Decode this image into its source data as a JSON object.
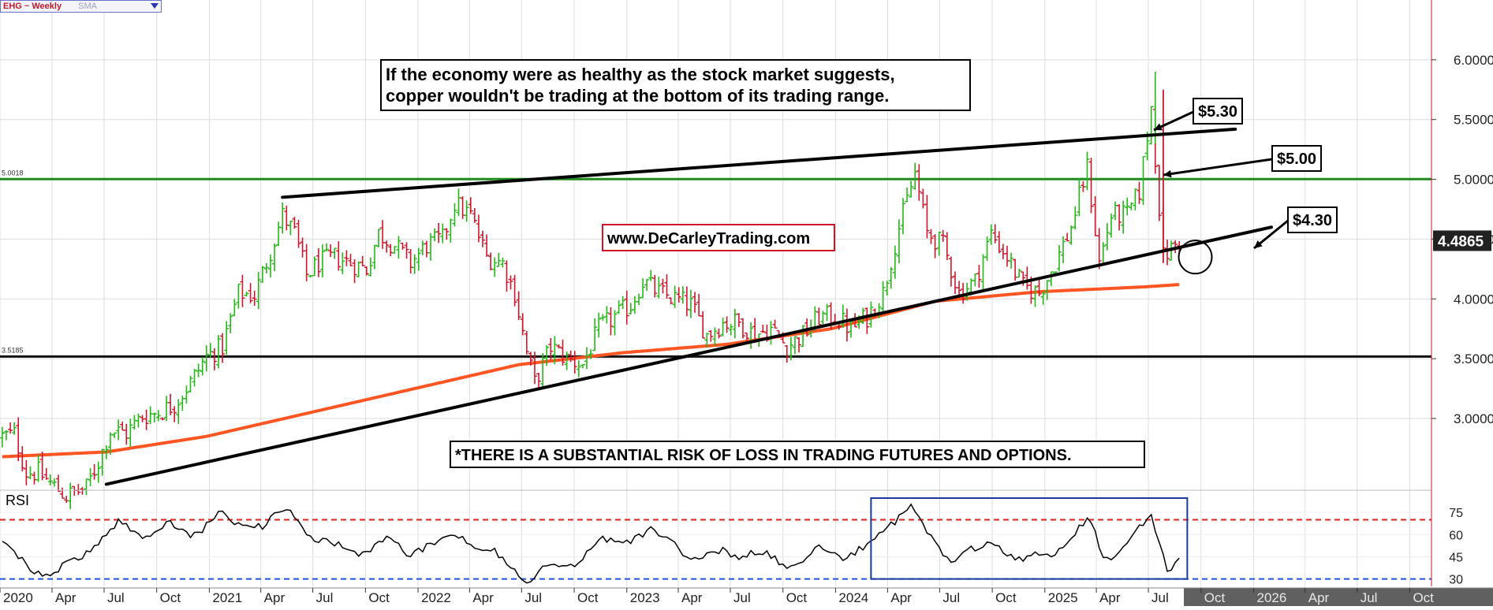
{
  "header": {
    "symbol": "EHG ~ Weekly",
    "indicator": "SMA"
  },
  "colors": {
    "up_bar": "#22b814",
    "down_bar": "#d0142a",
    "sma": "#ff5522",
    "resistance_line": "#1e8c1e",
    "rsi_overbought": "#e02020",
    "rsi_oversold": "#2255dd",
    "highlight_box": "#1a3a9a",
    "grid": "#dddddd",
    "future_band": "#606060",
    "price_tag": "#222222"
  },
  "annotations": {
    "headline": "If the economy were as healthy as the stock market suggests, copper wouldn't be trading at the bottom of its trading range.",
    "headline_line1": "If the economy were as healthy as the stock market suggests,",
    "headline_line2": "copper wouldn't be trading at the bottom of its trading range.",
    "website": "www.DeCarleyTrading.com",
    "disclaimer": "*THERE IS A SUBSTANTIAL RISK OF LOSS IN TRADING FUTURES AND OPTIONS.",
    "callouts": [
      "$5.30",
      "$5.00",
      "$4.30"
    ],
    "rsi_label": "RSI",
    "level_labels": [
      "5.0018",
      "3.5185"
    ],
    "last_price": "4.4865"
  },
  "chart_data": {
    "type": "line",
    "title": "EHG ~ Weekly",
    "frequency": "weekly",
    "last_price": 4.4865,
    "x_tick_labels": [
      "2020",
      "Apr",
      "Jul",
      "Oct",
      "2021",
      "Apr",
      "Jul",
      "Oct",
      "2022",
      "Apr",
      "Jul",
      "Oct",
      "2023",
      "Apr",
      "Jul",
      "Oct",
      "2024",
      "Apr",
      "Jul",
      "Oct",
      "2025",
      "Apr",
      "Jul",
      "Oct",
      "2026",
      "Apr",
      "Jul",
      "Oct"
    ],
    "x_tick_dates": [
      "2020-01-01",
      "2020-04-01",
      "2020-07-01",
      "2020-10-01",
      "2021-01-01",
      "2021-04-01",
      "2021-07-01",
      "2021-10-01",
      "2022-01-01",
      "2022-04-01",
      "2022-07-01",
      "2022-10-01",
      "2023-01-01",
      "2023-04-01",
      "2023-07-01",
      "2023-10-01",
      "2024-01-01",
      "2024-04-01",
      "2024-07-01",
      "2024-10-01",
      "2025-01-01",
      "2025-04-01",
      "2025-07-01",
      "2025-10-01",
      "2026-01-01",
      "2026-04-01",
      "2026-07-01",
      "2026-10-01"
    ],
    "x_range": [
      "2020-01-01",
      "2026-11-08"
    ],
    "future_start": "2025-09-01",
    "y_tick_labels": [
      "3.0000",
      "3.5000",
      "4.0000",
      "4.5000",
      "5.0000",
      "5.5000",
      "6.0000"
    ],
    "y_ticks": [
      3.0,
      3.5,
      4.0,
      4.5,
      5.0,
      5.5,
      6.0
    ],
    "ylim": [
      2.4,
      6.5
    ],
    "grid": true,
    "price": {
      "name": "Price",
      "style": "OHLC bars",
      "points": [
        [
          "2020-01-05",
          2.85
        ],
        [
          "2020-01-26",
          2.87
        ],
        [
          "2020-02-16",
          2.55
        ],
        [
          "2020-03-08",
          2.55
        ],
        [
          "2020-03-29",
          2.46
        ],
        [
          "2020-04-26",
          2.35
        ],
        [
          "2020-05-31",
          2.42
        ],
        [
          "2020-06-21",
          2.64
        ],
        [
          "2020-07-12",
          2.9
        ],
        [
          "2020-08-09",
          2.88
        ],
        [
          "2020-09-06",
          3.02
        ],
        [
          "2020-10-04",
          3.05
        ],
        [
          "2020-11-01",
          3.12
        ],
        [
          "2020-11-29",
          3.3
        ],
        [
          "2020-12-27",
          3.52
        ],
        [
          "2021-01-24",
          3.6
        ],
        [
          "2021-02-21",
          4.05
        ],
        [
          "2021-03-21",
          4.03
        ],
        [
          "2021-04-18",
          4.4
        ],
        [
          "2021-05-09",
          4.7
        ],
        [
          "2021-05-30",
          4.55
        ],
        [
          "2021-06-20",
          4.2
        ],
        [
          "2021-07-11",
          4.3
        ],
        [
          "2021-08-08",
          4.35
        ],
        [
          "2021-09-05",
          4.3
        ],
        [
          "2021-10-03",
          4.25
        ],
        [
          "2021-10-24",
          4.55
        ],
        [
          "2021-11-21",
          4.45
        ],
        [
          "2021-12-19",
          4.3
        ],
        [
          "2022-01-16",
          4.45
        ],
        [
          "2022-02-13",
          4.5
        ],
        [
          "2022-03-06",
          4.8
        ],
        [
          "2022-04-03",
          4.7
        ],
        [
          "2022-05-01",
          4.35
        ],
        [
          "2022-05-29",
          4.3
        ],
        [
          "2022-06-19",
          4.05
        ],
        [
          "2022-07-10",
          3.55
        ],
        [
          "2022-07-24",
          3.3
        ],
        [
          "2022-08-21",
          3.6
        ],
        [
          "2022-09-18",
          3.5
        ],
        [
          "2022-10-16",
          3.45
        ],
        [
          "2022-11-13",
          3.75
        ],
        [
          "2022-12-11",
          3.85
        ],
        [
          "2023-01-08",
          3.95
        ],
        [
          "2023-01-29",
          4.15
        ],
        [
          "2023-02-26",
          4.05
        ],
        [
          "2023-03-26",
          4.0
        ],
        [
          "2023-04-23",
          3.95
        ],
        [
          "2023-05-21",
          3.7
        ],
        [
          "2023-06-18",
          3.8
        ],
        [
          "2023-07-16",
          3.8
        ],
        [
          "2023-08-13",
          3.7
        ],
        [
          "2023-09-10",
          3.75
        ],
        [
          "2023-10-08",
          3.6
        ],
        [
          "2023-11-05",
          3.7
        ],
        [
          "2023-12-03",
          3.85
        ],
        [
          "2023-12-31",
          3.85
        ],
        [
          "2024-01-28",
          3.75
        ],
        [
          "2024-02-25",
          3.85
        ],
        [
          "2024-03-24",
          4.05
        ],
        [
          "2024-04-21",
          4.6
        ],
        [
          "2024-05-19",
          5.05
        ],
        [
          "2024-06-09",
          4.55
        ],
        [
          "2024-07-07",
          4.45
        ],
        [
          "2024-08-04",
          4.05
        ],
        [
          "2024-09-01",
          4.15
        ],
        [
          "2024-09-29",
          4.55
        ],
        [
          "2024-10-27",
          4.35
        ],
        [
          "2024-11-24",
          4.1
        ],
        [
          "2024-12-22",
          4.05
        ],
        [
          "2025-01-19",
          4.3
        ],
        [
          "2025-02-16",
          4.6
        ],
        [
          "2025-03-16",
          5.1
        ],
        [
          "2025-04-06",
          4.3
        ],
        [
          "2025-04-27",
          4.7
        ],
        [
          "2025-05-25",
          4.7
        ],
        [
          "2025-06-15",
          4.9
        ],
        [
          "2025-07-06",
          5.6
        ],
        [
          "2025-07-27",
          4.35
        ],
        [
          "2025-08-17",
          4.45
        ],
        [
          "2025-08-24",
          4.48
        ]
      ]
    },
    "sma": {
      "name": "SMA",
      "points": [
        [
          "2020-01-05",
          2.68
        ],
        [
          "2020-07-05",
          2.72
        ],
        [
          "2020-12-27",
          2.85
        ],
        [
          "2021-06-27",
          3.05
        ],
        [
          "2021-12-26",
          3.25
        ],
        [
          "2022-06-26",
          3.45
        ],
        [
          "2022-12-25",
          3.55
        ],
        [
          "2023-06-25",
          3.62
        ],
        [
          "2023-12-24",
          3.75
        ],
        [
          "2024-06-23",
          3.98
        ],
        [
          "2024-12-22",
          4.06
        ],
        [
          "2025-06-22",
          4.1
        ],
        [
          "2025-08-24",
          4.12
        ]
      ]
    },
    "trendlines": [
      {
        "name": "$5.30",
        "from": [
          "2021-05-09",
          4.85
        ],
        "to": [
          "2025-11-30",
          5.42
        ]
      },
      {
        "name": "$4.30",
        "from": [
          "2020-07-05",
          2.45
        ],
        "to": [
          "2026-02-01",
          4.6
        ]
      }
    ],
    "levels": [
      {
        "name": "5.0018",
        "value": 5.0018
      },
      {
        "name": "3.5185",
        "value": 3.5185
      }
    ],
    "callouts": [
      {
        "label": "$5.30",
        "date": "2025-07-27",
        "value": 5.3
      },
      {
        "label": "$5.00",
        "date": "2025-08-03",
        "value": 5.0
      },
      {
        "label": "$4.30",
        "date": "2025-09-28",
        "value": 4.3
      }
    ],
    "circle_target": {
      "date": "2025-09-21",
      "value": 4.35
    },
    "rsi": {
      "name": "RSI",
      "y_tick_labels": [
        "30",
        "45",
        "60",
        "75"
      ],
      "y_ticks": [
        30,
        45,
        60,
        75
      ],
      "ylim": [
        25,
        90
      ],
      "overbought": 70,
      "oversold": 30,
      "highlight_range": [
        "2024-03-03",
        "2025-09-07"
      ],
      "points": [
        [
          "2020-01-05",
          55
        ],
        [
          "2020-02-16",
          42
        ],
        [
          "2020-03-29",
          28
        ],
        [
          "2020-05-10",
          45
        ],
        [
          "2020-06-21",
          55
        ],
        [
          "2020-08-02",
          68
        ],
        [
          "2020-09-13",
          60
        ],
        [
          "2020-10-25",
          66
        ],
        [
          "2020-12-06",
          62
        ],
        [
          "2021-01-17",
          72
        ],
        [
          "2021-02-28",
          68
        ],
        [
          "2021-04-11",
          65
        ],
        [
          "2021-05-23",
          78
        ],
        [
          "2021-07-04",
          55
        ],
        [
          "2021-08-15",
          52
        ],
        [
          "2021-09-26",
          48
        ],
        [
          "2021-11-07",
          55
        ],
        [
          "2021-12-19",
          50
        ],
        [
          "2022-01-30",
          52
        ],
        [
          "2022-03-13",
          62
        ],
        [
          "2022-04-24",
          50
        ],
        [
          "2022-06-05",
          42
        ],
        [
          "2022-07-17",
          28
        ],
        [
          "2022-08-28",
          40
        ],
        [
          "2022-10-09",
          42
        ],
        [
          "2022-11-20",
          55
        ],
        [
          "2023-01-01",
          58
        ],
        [
          "2023-02-12",
          60
        ],
        [
          "2023-03-26",
          55
        ],
        [
          "2023-05-07",
          42
        ],
        [
          "2023-06-18",
          50
        ],
        [
          "2023-07-30",
          46
        ],
        [
          "2023-09-10",
          44
        ],
        [
          "2023-10-22",
          40
        ],
        [
          "2023-12-03",
          50
        ],
        [
          "2024-01-14",
          46
        ],
        [
          "2024-02-25",
          50
        ],
        [
          "2024-04-07",
          70
        ],
        [
          "2024-05-12",
          80
        ],
        [
          "2024-06-09",
          58
        ],
        [
          "2024-07-21",
          45
        ],
        [
          "2024-09-01",
          48
        ],
        [
          "2024-10-13",
          55
        ],
        [
          "2024-11-24",
          42
        ],
        [
          "2025-01-05",
          46
        ],
        [
          "2025-02-16",
          58
        ],
        [
          "2025-03-23",
          68
        ],
        [
          "2025-04-13",
          44
        ],
        [
          "2025-05-25",
          52
        ],
        [
          "2025-07-06",
          72
        ],
        [
          "2025-08-03",
          40
        ],
        [
          "2025-08-24",
          42
        ]
      ]
    }
  }
}
